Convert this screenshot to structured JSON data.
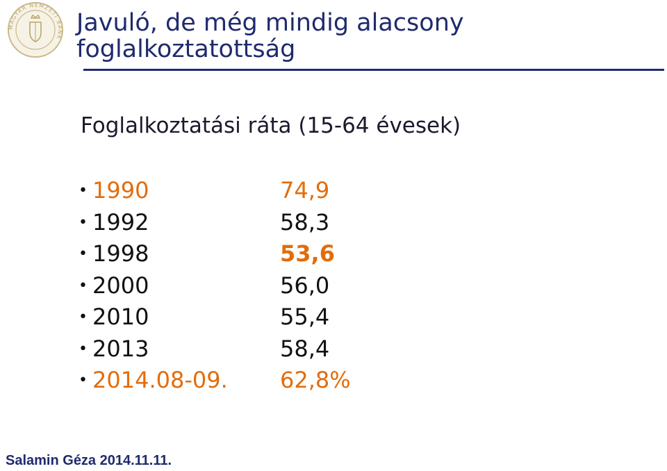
{
  "logo": {
    "icon": "central-bank-seal-icon",
    "ring_text": "MAGYAR NEMZETI BANK",
    "color": "#c9b98a"
  },
  "title": {
    "line1": "Javuló, de még mindig alacsony",
    "line2": "foglalkoztatottság",
    "color": "#1f2a6e"
  },
  "subtitle": "Foglalkoztatási ráta (15-64 évesek)",
  "rows": [
    {
      "year": "1990",
      "value": "74,9"
    },
    {
      "year": "1992",
      "value": "58,3"
    },
    {
      "year": "1998",
      "value": "53,6"
    },
    {
      "year": "2000",
      "value": "56,0"
    },
    {
      "year": "2010",
      "value": "55,4"
    },
    {
      "year": "2013",
      "value": "58,4"
    },
    {
      "year": "2014.08-09.",
      "value": "62,8%"
    }
  ],
  "colors": {
    "accent": "#e36c0a",
    "text": "#111111",
    "title": "#1f2a6e"
  },
  "footer": "Salamin Géza 2014.11.11."
}
